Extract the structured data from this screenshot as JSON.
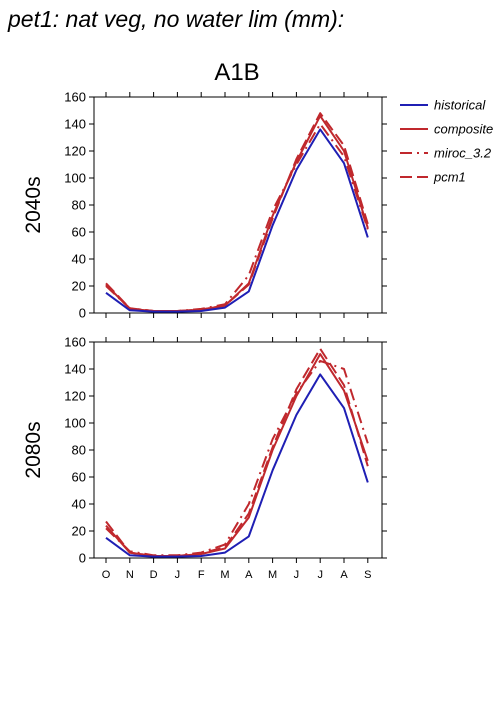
{
  "page_title": "pet1: nat veg, no water lim (mm):",
  "scenario_label": "A1B",
  "legend": [
    {
      "name": "historical",
      "color": "#1f1fb4",
      "dash": "solid"
    },
    {
      "name": "composite",
      "color": "#c0282d",
      "dash": "solid"
    },
    {
      "name": "miroc_3.2",
      "color": "#c0282d",
      "dash": "dashdot"
    },
    {
      "name": "pcm1",
      "color": "#c0282d",
      "dash": "dashed"
    }
  ],
  "chart_data": [
    {
      "type": "line",
      "row_label": "2040s",
      "categories": [
        "O",
        "N",
        "D",
        "J",
        "F",
        "M",
        "A",
        "M",
        "J",
        "J",
        "A",
        "S"
      ],
      "ylim": [
        0,
        160
      ],
      "yticks": [
        0,
        20,
        40,
        60,
        80,
        100,
        120,
        140,
        160
      ],
      "series": [
        {
          "name": "historical",
          "values": [
            15,
            2,
            1,
            1,
            1.5,
            4,
            16,
            65,
            106,
            136,
            111,
            56
          ]
        },
        {
          "name": "composite",
          "values": [
            21,
            3,
            1.5,
            1.5,
            2.5,
            5.5,
            22,
            72,
            112,
            146,
            120,
            63
          ]
        },
        {
          "name": "miroc_3.2",
          "values": [
            20,
            3.5,
            1.5,
            1.5,
            3,
            6.5,
            28,
            76,
            110,
            140,
            116,
            62
          ]
        },
        {
          "name": "pcm1",
          "values": [
            22,
            3.5,
            1.5,
            1.5,
            2.5,
            5.5,
            21,
            70,
            114,
            148,
            124,
            66
          ]
        }
      ]
    },
    {
      "type": "line",
      "row_label": "2080s",
      "categories": [
        "O",
        "N",
        "D",
        "J",
        "F",
        "M",
        "A",
        "M",
        "J",
        "J",
        "A",
        "S"
      ],
      "ylim": [
        0,
        160
      ],
      "yticks": [
        0,
        20,
        40,
        60,
        80,
        100,
        120,
        140,
        160
      ],
      "series": [
        {
          "name": "historical",
          "values": [
            15,
            2,
            1,
            1,
            1.5,
            4,
            16,
            65,
            106,
            136,
            111,
            56
          ]
        },
        {
          "name": "composite",
          "values": [
            24,
            4,
            1.5,
            1.5,
            3,
            7,
            30,
            80,
            120,
            151,
            124,
            72
          ]
        },
        {
          "name": "miroc_3.2",
          "values": [
            22,
            5,
            2,
            2,
            4,
            10,
            40,
            88,
            122,
            146,
            140,
            85
          ]
        },
        {
          "name": "pcm1",
          "values": [
            27,
            4,
            1.5,
            1.5,
            3.5,
            8,
            33,
            82,
            125,
            155,
            128,
            68
          ]
        }
      ]
    }
  ]
}
